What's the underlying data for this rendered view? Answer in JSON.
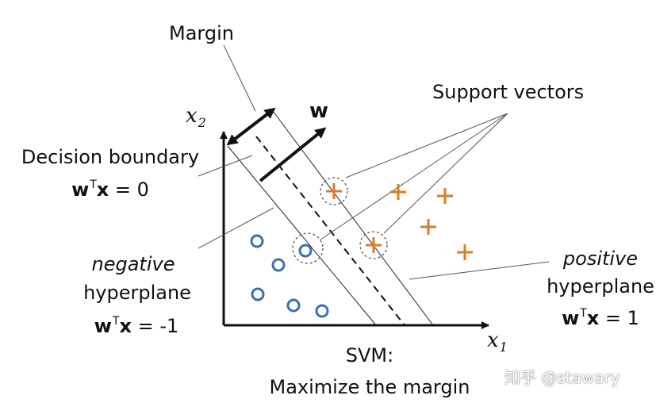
{
  "labels": {
    "margin": "Margin",
    "w": "w",
    "support_vectors": "Support vectors",
    "decision_boundary": "Decision boundary",
    "decision_eq": {
      "w": "w",
      "T": "T",
      "x": "x",
      "rest": " = 0"
    },
    "negative": "negative",
    "negative_hyperplane": "hyperplane",
    "negative_eq": {
      "w": "w",
      "T": "T",
      "x": "x",
      "rest": " = -1"
    },
    "positive": "positive",
    "positive_hyperplane": "hyperplane",
    "positive_eq": {
      "w": "w",
      "T": "T",
      "x": "x",
      "rest": " = 1"
    },
    "svm_title": "SVM:",
    "svm_subtitle": "Maximize the margin"
  },
  "axes": {
    "x": {
      "var": "x",
      "sub": "1"
    },
    "y": {
      "var": "x",
      "sub": "2"
    }
  },
  "watermark": "知乎 @stawary",
  "colors": {
    "negative_class": "#3a6fb0",
    "positive_class": "#d67f2a",
    "lines": "#111111"
  }
}
